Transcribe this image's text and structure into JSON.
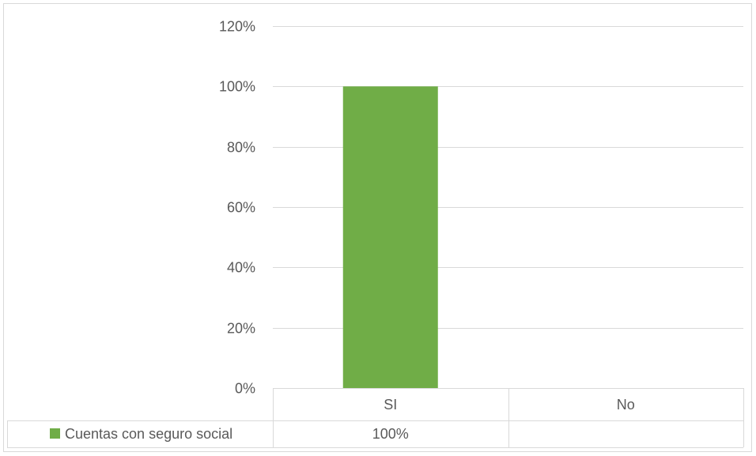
{
  "chart_data": {
    "type": "bar",
    "categories": [
      "SI",
      "No"
    ],
    "series": [
      {
        "name": "Cuentas con seguro social",
        "values": [
          1.0,
          null
        ],
        "color": "#70ad47"
      }
    ],
    "ylim": [
      0,
      1.2
    ],
    "y_ticks": [
      0,
      0.2,
      0.4,
      0.6,
      0.8,
      1.0,
      1.2
    ],
    "y_tick_labels": [
      "0%",
      "20%",
      "40%",
      "60%",
      "80%",
      "100%",
      "120%"
    ],
    "grid": true,
    "legend": "data-table",
    "data_table": {
      "legend_label": "Cuentas con seguro social",
      "cells": [
        "100%",
        ""
      ]
    },
    "title": "",
    "xlabel": "",
    "ylabel": ""
  }
}
